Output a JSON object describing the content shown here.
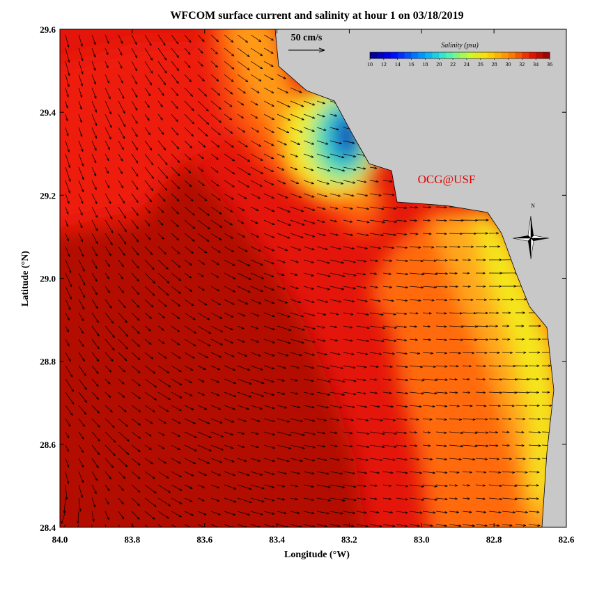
{
  "title": "WFCOM surface current and salinity at hour 1 on 03/18/2019",
  "x_axis": {
    "label": "Longitude (°W)",
    "lim": [
      84.0,
      82.6
    ],
    "ticks": [
      {
        "value": 84,
        "label": "84.0"
      },
      83.8,
      83.6,
      83.4,
      83.2,
      {
        "value": 83,
        "label": "83.0"
      },
      82.8,
      82.6
    ]
  },
  "y_axis": {
    "label": "Latitude (°N)",
    "lim": [
      28.4,
      29.6
    ],
    "ticks": [
      28.4,
      28.6,
      28.8,
      {
        "value": 29,
        "label": "29.0"
      },
      29.2,
      29.4,
      29.6
    ]
  },
  "colorbar": {
    "title": "Salinity (psu)",
    "lim": [
      10,
      36
    ],
    "ticks": [
      10,
      12,
      14,
      16,
      18,
      20,
      22,
      24,
      26,
      28,
      30,
      32,
      34,
      36
    ]
  },
  "scale_arrow": "50 cm/s",
  "credit": "OCG@USF",
  "compass": "N"
}
